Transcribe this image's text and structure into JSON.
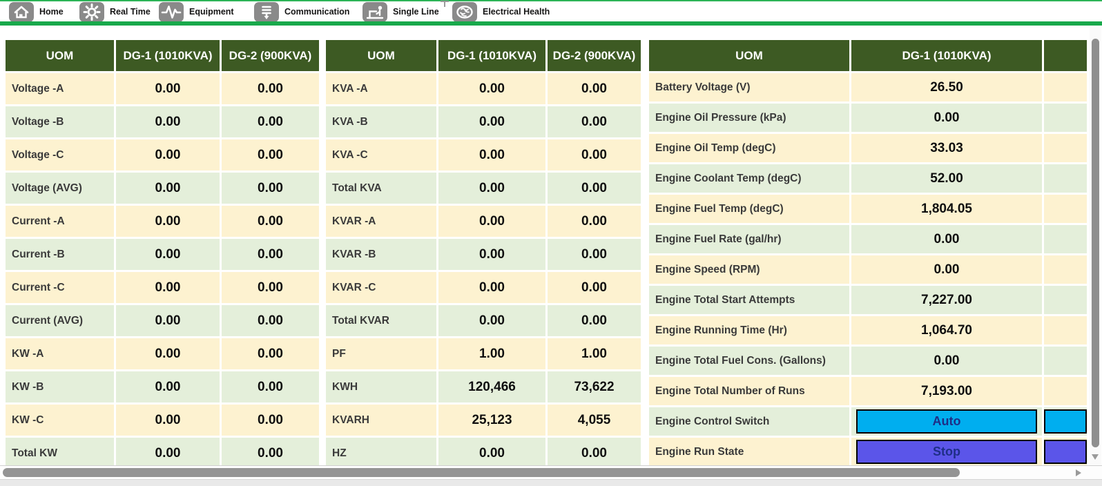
{
  "toolbar": {
    "items": [
      {
        "icon": "home-icon",
        "label": "Home"
      },
      {
        "icon": "gear-icon",
        "label": "Real Time"
      },
      {
        "icon": "pulse-icon",
        "label": "Equipment"
      },
      {
        "icon": "cfl-bulb-icon",
        "label": "Communication"
      },
      {
        "icon": "laptop-person-icon",
        "label": "Single Line"
      },
      {
        "icon": "brain-icon",
        "label": "Electrical Health"
      }
    ]
  },
  "tables": [
    {
      "title": "electrical-measurements",
      "headers": [
        "UOM",
        "DG-1 (1010KVA)",
        "DG-2 (900KVA)"
      ],
      "rows": [
        {
          "label": "Voltage -A",
          "values": [
            "0.00",
            "0.00"
          ]
        },
        {
          "label": "Voltage -B",
          "values": [
            "0.00",
            "0.00"
          ]
        },
        {
          "label": "Voltage -C",
          "values": [
            "0.00",
            "0.00"
          ]
        },
        {
          "label": "Voltage (AVG)",
          "values": [
            "0.00",
            "0.00"
          ]
        },
        {
          "label": "Current -A",
          "values": [
            "0.00",
            "0.00"
          ]
        },
        {
          "label": "Current -B",
          "values": [
            "0.00",
            "0.00"
          ]
        },
        {
          "label": "Current -C",
          "values": [
            "0.00",
            "0.00"
          ]
        },
        {
          "label": "Current (AVG)",
          "values": [
            "0.00",
            "0.00"
          ]
        },
        {
          "label": "KW -A",
          "values": [
            "0.00",
            "0.00"
          ]
        },
        {
          "label": "KW -B",
          "values": [
            "0.00",
            "0.00"
          ]
        },
        {
          "label": "KW -C",
          "values": [
            "0.00",
            "0.00"
          ]
        },
        {
          "label": "Total KW",
          "values": [
            "0.00",
            "0.00"
          ]
        }
      ]
    },
    {
      "title": "power-measurements",
      "headers": [
        "UOM",
        "DG-1 (1010KVA)",
        "DG-2 (900KVA)"
      ],
      "rows": [
        {
          "label": "KVA -A",
          "values": [
            "0.00",
            "0.00"
          ]
        },
        {
          "label": "KVA -B",
          "values": [
            "0.00",
            "0.00"
          ]
        },
        {
          "label": "KVA -C",
          "values": [
            "0.00",
            "0.00"
          ]
        },
        {
          "label": "Total KVA",
          "values": [
            "0.00",
            "0.00"
          ]
        },
        {
          "label": "KVAR -A",
          "values": [
            "0.00",
            "0.00"
          ]
        },
        {
          "label": "KVAR -B",
          "values": [
            "0.00",
            "0.00"
          ]
        },
        {
          "label": "KVAR -C",
          "values": [
            "0.00",
            "0.00"
          ]
        },
        {
          "label": "Total KVAR",
          "values": [
            "0.00",
            "0.00"
          ]
        },
        {
          "label": "PF",
          "values": [
            "1.00",
            "1.00"
          ]
        },
        {
          "label": "KWH",
          "values": [
            "120,466",
            "73,622"
          ]
        },
        {
          "label": "KVARH",
          "values": [
            "25,123",
            "4,055"
          ]
        },
        {
          "label": "HZ",
          "values": [
            "0.00",
            "0.00"
          ]
        }
      ]
    },
    {
      "title": "engine-parameters",
      "partial_column": true,
      "headers": [
        "UOM",
        "DG-1 (1010KVA)",
        ""
      ],
      "rows": [
        {
          "label": "Battery Voltage (V)",
          "values": [
            "26.50"
          ]
        },
        {
          "label": "Engine Oil Pressure (kPa)",
          "values": [
            "0.00"
          ]
        },
        {
          "label": "Engine Oil Temp (degC)",
          "values": [
            "33.03"
          ]
        },
        {
          "label": "Engine Coolant Temp (degC)",
          "values": [
            "52.00"
          ]
        },
        {
          "label": "Engine Fuel Temp (degC)",
          "values": [
            "1,804.05"
          ]
        },
        {
          "label": "Engine Fuel Rate (gal/hr)",
          "values": [
            "0.00"
          ]
        },
        {
          "label": "Engine Speed (RPM)",
          "values": [
            "0.00"
          ]
        },
        {
          "label": "Engine Total Start Attempts",
          "values": [
            "7,227.00"
          ]
        },
        {
          "label": "Engine Running Time (Hr)",
          "values": [
            "1,064.70"
          ]
        },
        {
          "label": "Engine Total Fuel Cons. (Gallons)",
          "values": [
            "0.00"
          ]
        },
        {
          "label": "Engine Total Number of Runs",
          "values": [
            "7,193.00"
          ]
        },
        {
          "label": "Engine Control Switch",
          "button": {
            "text": "Auto",
            "color": "#00aeef"
          }
        },
        {
          "label": "Engine Run State",
          "button": {
            "text": "Stop",
            "color": "#5b55e9"
          }
        }
      ]
    }
  ],
  "colors": {
    "header_green": "#3d5a23",
    "row_cream": "#fdf2d0",
    "row_green": "#e4efda",
    "divider_green": "#18a94b",
    "control_auto": "#00aeef",
    "state_stop": "#5b55e9",
    "button_text": "#1e2e86"
  }
}
